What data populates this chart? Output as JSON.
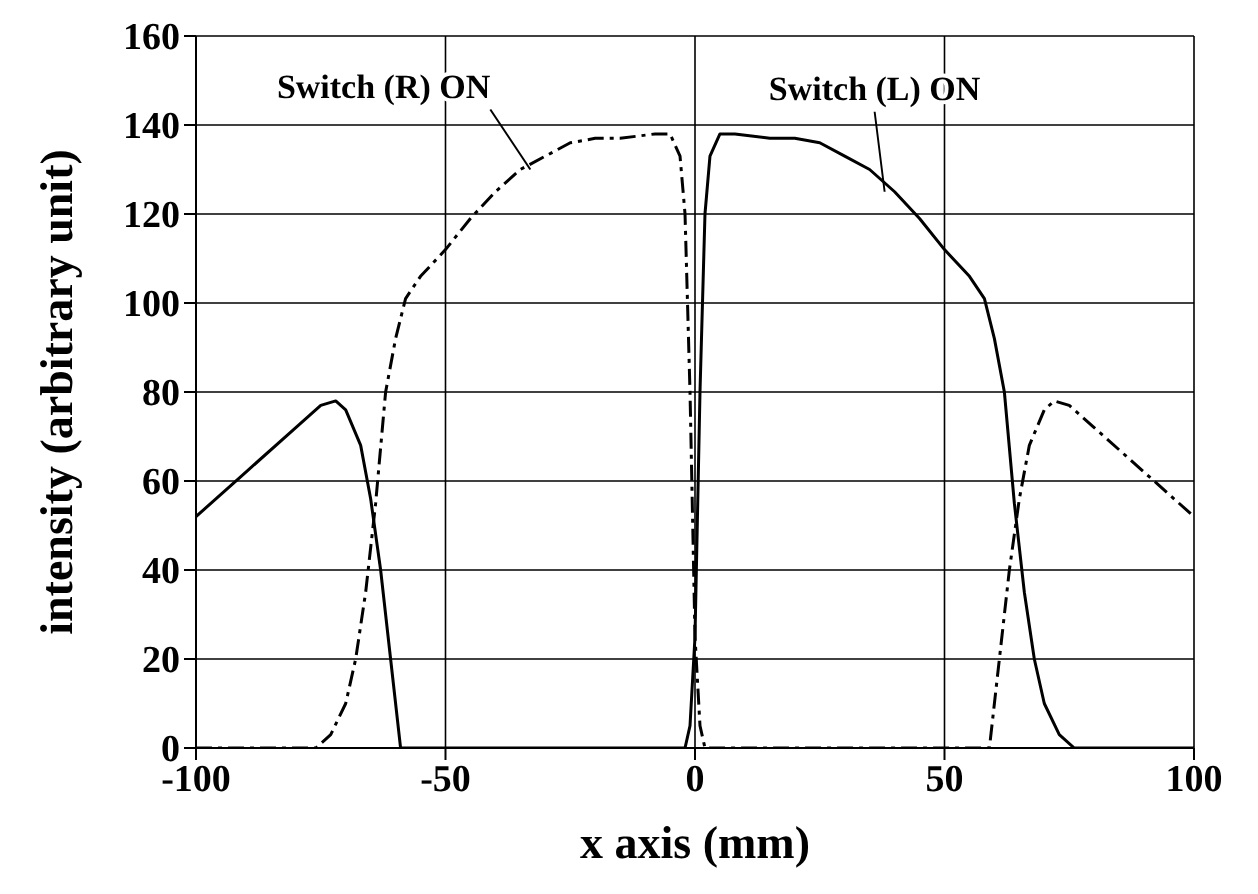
{
  "chart_data": {
    "type": "line",
    "xlabel": "x axis (mm)",
    "ylabel": "intensity (arbitrary unit)",
    "xlim": [
      -100,
      100
    ],
    "xticks": [
      -100,
      -50,
      0,
      50,
      100
    ],
    "ylim": [
      0,
      160
    ],
    "yticks": [
      0,
      20,
      40,
      60,
      80,
      100,
      120,
      140,
      160
    ],
    "grid": true,
    "marker": "none",
    "series": [
      {
        "color": "#000000",
        "line_style": "solid",
        "x": [
          -100,
          -90,
          -80,
          -75,
          -72,
          -70,
          -67,
          -65,
          -63,
          -61,
          -59,
          -55,
          -10,
          -2,
          -1,
          0,
          1,
          2,
          3,
          5,
          8,
          15,
          20,
          25,
          30,
          35,
          40,
          45,
          50,
          55,
          58,
          60,
          62,
          64,
          66,
          68,
          70,
          73,
          76,
          80,
          100
        ],
        "values": [
          52,
          62,
          72,
          77,
          78,
          76,
          68,
          56,
          40,
          20,
          0,
          0,
          0,
          0,
          5,
          25,
          80,
          120,
          133,
          138,
          138,
          137,
          137,
          136,
          133,
          130,
          125,
          119,
          112,
          106,
          101,
          92,
          80,
          55,
          35,
          20,
          10,
          3,
          0,
          0,
          0
        ]
      },
      {
        "color": "#000000",
        "line_style": "dashed",
        "x": [
          -100,
          -80,
          -76,
          -73,
          -70,
          -68,
          -66,
          -64,
          -62,
          -60,
          -58,
          -55,
          -50,
          -45,
          -40,
          -35,
          -30,
          -25,
          -20,
          -15,
          -8,
          -5,
          -3,
          -2,
          -1,
          0,
          1,
          2,
          10,
          55,
          59,
          61,
          63,
          65,
          67,
          70,
          72,
          75,
          80,
          90,
          100
        ],
        "values": [
          0,
          0,
          0,
          3,
          10,
          20,
          35,
          55,
          80,
          92,
          101,
          106,
          112,
          119,
          125,
          130,
          133,
          136,
          137,
          137,
          138,
          138,
          133,
          120,
          80,
          25,
          5,
          0,
          0,
          0,
          0,
          20,
          40,
          56,
          68,
          76,
          78,
          77,
          72,
          62,
          52
        ]
      }
    ],
    "annotations": [
      {
        "text": "Switch (R) ON",
        "x": -33,
        "y": 130
      },
      {
        "text": "Switch (L) ON",
        "x": 38,
        "y": 125
      }
    ]
  }
}
